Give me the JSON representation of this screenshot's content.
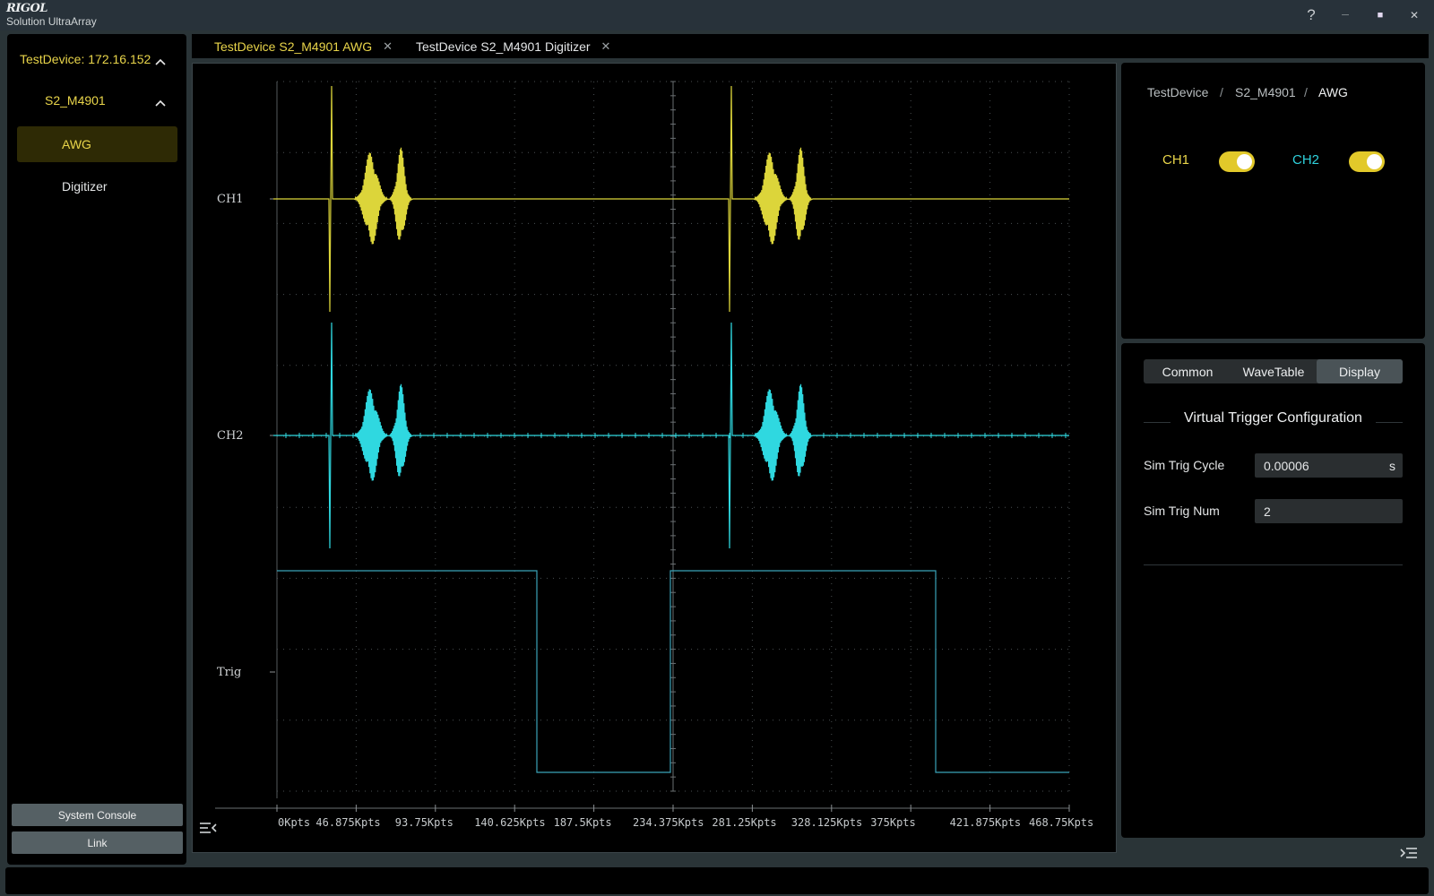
{
  "app": {
    "brand": "RIGOL",
    "product": "Solution UltraArray"
  },
  "titlebar": {
    "help": "?",
    "minimize": "─",
    "maximize": "■",
    "close": "✕"
  },
  "sidebar": {
    "device": "TestDevice: 172.16.152",
    "module": "S2_M4901",
    "items": [
      {
        "label": "AWG",
        "selected": true
      },
      {
        "label": "Digitizer",
        "selected": false
      }
    ],
    "system_console": "System Console",
    "link": "Link"
  },
  "tabs": [
    {
      "label": "TestDevice S2_M4901 AWG",
      "active": true
    },
    {
      "label": "TestDevice S2_M4901 Digitizer",
      "active": false
    }
  ],
  "plot": {
    "channel_labels": [
      "CH1",
      "CH2",
      "Trig"
    ],
    "x_ticks": [
      "0Kpts",
      "46.875Kpts",
      "93.75Kpts",
      "140.625Kpts",
      "187.5Kpts",
      "234.375Kpts",
      "281.25Kpts",
      "328.125Kpts",
      "375Kpts",
      "421.875Kpts",
      "468.75Kpts"
    ],
    "colors": {
      "ch1": "#dcd53a",
      "ch2": "#2fd8e0",
      "trig": "#3aa2b8",
      "grid": "#4a4f52"
    }
  },
  "right_panel": {
    "breadcrumb": [
      "TestDevice",
      "S2_M4901",
      "AWG"
    ],
    "ch1": {
      "label": "CH1",
      "on": true,
      "color": "#e9d54a"
    },
    "ch2": {
      "label": "CH2",
      "on": true,
      "color": "#2fd1dc"
    },
    "tabs": [
      {
        "label": "Common"
      },
      {
        "label": "WaveTable"
      },
      {
        "label": "Display",
        "selected": true
      }
    ],
    "section_title": "Virtual Trigger Configuration",
    "sim_trig_cycle": {
      "label": "Sim Trig Cycle",
      "value": "0.00006",
      "unit": "s"
    },
    "sim_trig_num": {
      "label": "Sim Trig Num",
      "value": "2"
    }
  }
}
